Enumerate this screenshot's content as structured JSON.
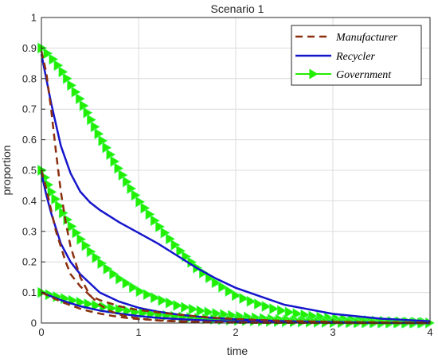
{
  "chart_data": {
    "type": "line",
    "title": "Scenario 1",
    "xlabel": "time",
    "ylabel": "proportion",
    "xlim": [
      0,
      4
    ],
    "ylim": [
      0,
      1
    ],
    "x_ticks": [
      "0",
      "1",
      "2",
      "3",
      "4"
    ],
    "y_ticks": [
      "0",
      "0.1",
      "0.2",
      "0.3",
      "0.4",
      "0.5",
      "0.6",
      "0.7",
      "0.8",
      "0.9",
      "1"
    ],
    "grid": true,
    "legend_position": "top-right",
    "series": [
      {
        "name": "Manufacturer",
        "color": "#8B2F0F",
        "style": "dashed",
        "curves": [
          {
            "x": [
              0,
              0.05,
              0.1,
              0.15,
              0.2,
              0.25,
              0.3,
              0.4,
              0.5,
              0.6,
              0.7,
              0.8,
              0.9,
              1.0,
              1.2,
              1.4,
              1.6,
              1.8,
              2.0,
              2.5,
              3.0,
              3.5,
              4.0
            ],
            "y": [
              0.89,
              0.82,
              0.7,
              0.56,
              0.43,
              0.33,
              0.25,
              0.15,
              0.09,
              0.06,
              0.04,
              0.028,
              0.02,
              0.015,
              0.008,
              0.005,
              0.003,
              0.002,
              0.001,
              0.0005,
              0.0002,
              0.0001,
              0
            ]
          },
          {
            "x": [
              0,
              0.05,
              0.1,
              0.15,
              0.2,
              0.25,
              0.3,
              0.4,
              0.5,
              0.6,
              0.7,
              0.8,
              0.9,
              1.0,
              1.2,
              1.4,
              1.6,
              1.8,
              2.0,
              2.5,
              3.0,
              3.5,
              4.0
            ],
            "y": [
              0.5,
              0.44,
              0.37,
              0.3,
              0.25,
              0.2,
              0.16,
              0.12,
              0.09,
              0.075,
              0.065,
              0.055,
              0.048,
              0.043,
              0.035,
              0.028,
              0.022,
              0.017,
              0.013,
              0.007,
              0.004,
              0.002,
              0.001
            ]
          },
          {
            "x": [
              0,
              0.1,
              0.2,
              0.3,
              0.4,
              0.5,
              0.6,
              0.7,
              0.8,
              0.9,
              1.0,
              1.2,
              1.4,
              1.6,
              1.8,
              2.0,
              2.5,
              3.0,
              3.5,
              4.0
            ],
            "y": [
              0.1,
              0.085,
              0.07,
              0.058,
              0.047,
              0.038,
              0.031,
              0.025,
              0.02,
              0.016,
              0.013,
              0.009,
              0.006,
              0.004,
              0.003,
              0.002,
              0.001,
              0.0005,
              0.0002,
              0
            ]
          }
        ]
      },
      {
        "name": "Recycler",
        "color": "#1515CC",
        "style": "solid",
        "curves": [
          {
            "x": [
              0,
              0.05,
              0.1,
              0.15,
              0.2,
              0.3,
              0.4,
              0.5,
              0.6,
              0.7,
              0.8,
              1.0,
              1.2,
              1.4,
              1.6,
              1.8,
              2.0,
              2.5,
              3.0,
              3.5,
              4.0
            ],
            "y": [
              0.88,
              0.8,
              0.72,
              0.65,
              0.58,
              0.49,
              0.43,
              0.395,
              0.37,
              0.35,
              0.33,
              0.295,
              0.26,
              0.22,
              0.18,
              0.145,
              0.115,
              0.06,
              0.03,
              0.014,
              0.006
            ]
          },
          {
            "x": [
              0,
              0.05,
              0.1,
              0.15,
              0.2,
              0.3,
              0.4,
              0.5,
              0.6,
              0.7,
              0.8,
              1.0,
              1.2,
              1.4,
              1.6,
              1.8,
              2.0,
              2.5,
              3.0,
              3.5,
              4.0
            ],
            "y": [
              0.49,
              0.42,
              0.36,
              0.31,
              0.26,
              0.2,
              0.16,
              0.13,
              0.1,
              0.085,
              0.07,
              0.05,
              0.037,
              0.028,
              0.021,
              0.016,
              0.012,
              0.006,
              0.003,
              0.001,
              0
            ]
          },
          {
            "x": [
              0,
              0.2,
              0.4,
              0.6,
              0.8,
              1.0,
              1.2,
              1.4,
              1.6,
              1.8,
              2.0,
              2.5,
              3.0,
              3.5,
              4.0
            ],
            "y": [
              0.1,
              0.075,
              0.055,
              0.041,
              0.031,
              0.023,
              0.017,
              0.013,
              0.01,
              0.007,
              0.005,
              0.002,
              0.001,
              0.0004,
              0
            ]
          }
        ]
      },
      {
        "name": "Government",
        "color": "#22EE00",
        "style": "solid-markers",
        "marker": "triangle-right",
        "curves": [
          {
            "x": [
              0,
              0.1,
              0.2,
              0.3,
              0.4,
              0.5,
              0.6,
              0.7,
              0.8,
              0.9,
              1.0,
              1.2,
              1.4,
              1.6,
              1.8,
              2.0,
              2.2,
              2.4,
              2.6,
              2.8,
              3.0,
              3.2,
              3.4,
              3.6,
              3.8,
              4.0
            ],
            "y": [
              0.9,
              0.87,
              0.83,
              0.78,
              0.73,
              0.67,
              0.61,
              0.555,
              0.5,
              0.45,
              0.4,
              0.32,
              0.245,
              0.18,
              0.13,
              0.09,
              0.065,
              0.045,
              0.032,
              0.022,
              0.015,
              0.01,
              0.007,
              0.005,
              0.003,
              0.002
            ]
          },
          {
            "x": [
              0,
              0.1,
              0.2,
              0.3,
              0.4,
              0.5,
              0.6,
              0.7,
              0.8,
              0.9,
              1.0,
              1.2,
              1.4,
              1.6,
              1.8,
              2.0,
              2.2,
              2.4,
              2.6,
              2.8,
              3.0,
              3.2,
              3.4,
              3.6,
              3.8,
              4.0
            ],
            "y": [
              0.5,
              0.43,
              0.37,
              0.32,
              0.275,
              0.235,
              0.2,
              0.17,
              0.145,
              0.125,
              0.105,
              0.078,
              0.057,
              0.042,
              0.031,
              0.023,
              0.017,
              0.012,
              0.009,
              0.007,
              0.005,
              0.003,
              0.002,
              0.0015,
              0.001,
              0.0005
            ]
          },
          {
            "x": [
              0,
              0.1,
              0.2,
              0.3,
              0.4,
              0.5,
              0.6,
              0.7,
              0.8,
              0.9,
              1.0,
              1.2,
              1.4,
              1.6,
              1.8,
              2.0,
              2.2,
              2.4,
              2.6,
              2.8,
              3.0,
              3.2,
              3.4,
              3.6,
              3.8,
              4.0
            ],
            "y": [
              0.1,
              0.091,
              0.083,
              0.075,
              0.068,
              0.061,
              0.055,
              0.049,
              0.044,
              0.039,
              0.034,
              0.027,
              0.021,
              0.016,
              0.012,
              0.009,
              0.007,
              0.005,
              0.004,
              0.003,
              0.002,
              0.0015,
              0.001,
              0.0007,
              0.0004,
              0.0002
            ]
          }
        ]
      }
    ]
  }
}
